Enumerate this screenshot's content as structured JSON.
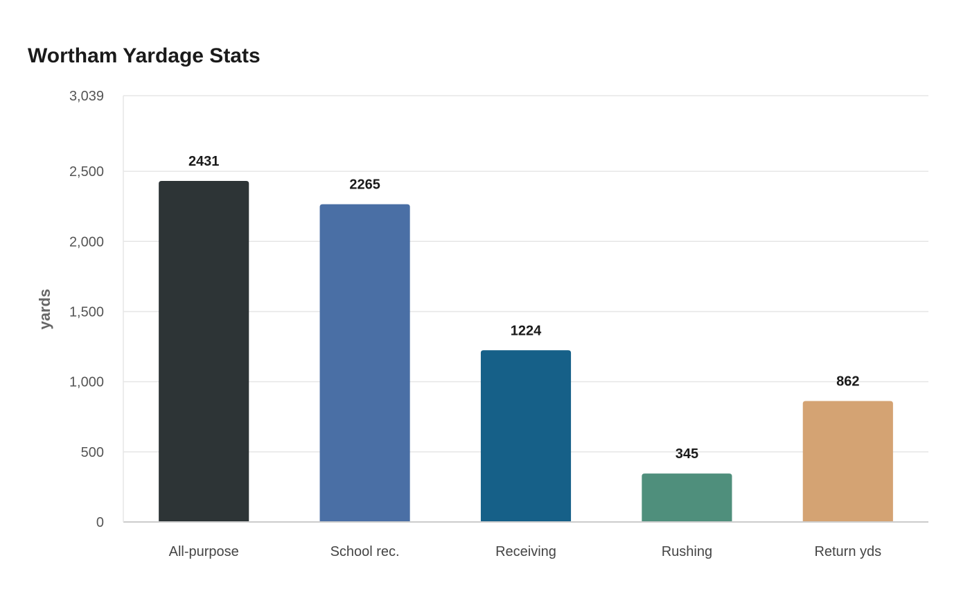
{
  "chart_data": {
    "type": "bar",
    "title": "Wortham Yardage Stats",
    "xlabel": "",
    "ylabel": "yards",
    "categories": [
      "All-purpose",
      "School rec.",
      "Receiving",
      "Rushing",
      "Return yds"
    ],
    "values": [
      2431,
      2265,
      1224,
      345,
      862
    ],
    "value_labels": [
      "2431",
      "2265",
      "1224",
      "345",
      "862"
    ],
    "colors": [
      "#2d3436",
      "#4a6fa5",
      "#166088",
      "#4f8f7c",
      "#d4a373"
    ],
    "ylim": [
      0,
      3039
    ],
    "yticks": [
      0,
      500,
      1000,
      1500,
      2000,
      2500,
      3039
    ],
    "ytick_labels": [
      "0",
      "500",
      "1,000",
      "1,500",
      "2,000",
      "2,500",
      "3,039"
    ],
    "grid": true,
    "legend": "none"
  }
}
